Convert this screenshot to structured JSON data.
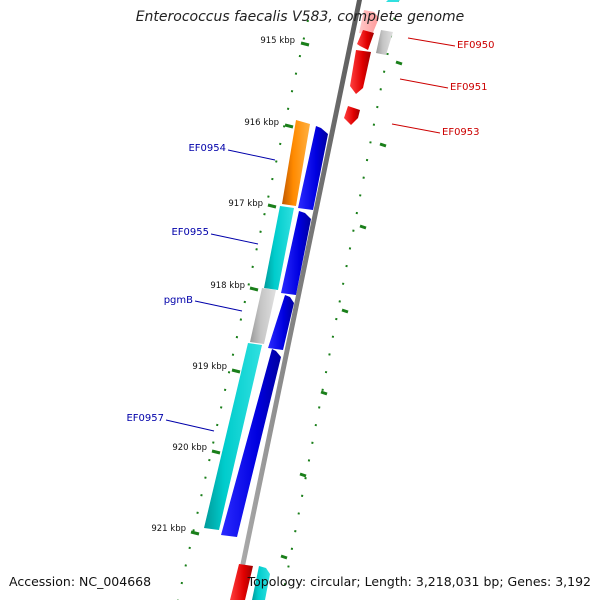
{
  "title": "Enterococcus faecalis V583, complete genome",
  "footer": {
    "accession": "Accession: NC_004668",
    "summary": "Topology: circular; Length: 3,218,031 bp; Genes: 3,192"
  },
  "ticks": [
    "915 kbp",
    "916 kbp",
    "917 kbp",
    "918 kbp",
    "919 kbp",
    "920 kbp",
    "921 kbp"
  ],
  "gene_labels": {
    "reverse": [
      "EF0950",
      "EF0951",
      "EF0953"
    ],
    "forward": [
      "EF0954",
      "EF0955",
      "pgmB",
      "EF0957"
    ]
  },
  "colors": {
    "backbone": "#808080",
    "tick": "#1a7f1a",
    "reverse_label": "#cc0000",
    "forward_label": "#0000aa",
    "gene_red": "#ff0000",
    "gene_blue": "#0000ee",
    "gene_cyan": "#00c8c8",
    "gene_orange": "#ff8800",
    "gene_gray": "#bbbbbb",
    "gene_pink": "#ffb0b0"
  }
}
